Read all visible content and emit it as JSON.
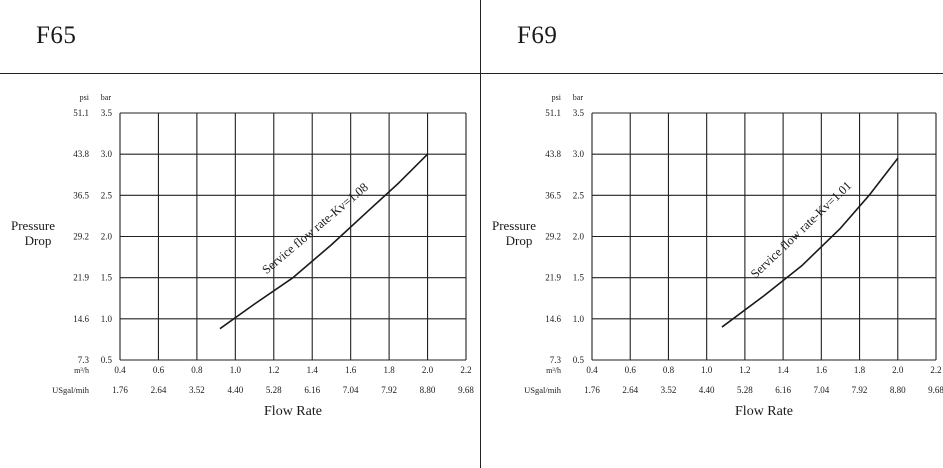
{
  "charts": [
    {
      "title": "F65",
      "chart_data": {
        "type": "line",
        "title": "F65",
        "xlabel": "Flow Rate",
        "ylabel": "Pressure Drop",
        "unit_labels": {
          "psi": "psi",
          "bar": "bar",
          "m3h": "m³/h",
          "usgal": "USgal/mih"
        },
        "xlim": [
          0.4,
          2.2
        ],
        "ylim": [
          0.5,
          3.5
        ],
        "x_ticks_m3h": [
          "0.4",
          "0.6",
          "0.8",
          "1.0",
          "1.2",
          "1.4",
          "1.6",
          "1.8",
          "2.0",
          "2.2"
        ],
        "x_ticks_usgal": [
          "1.76",
          "2.64",
          "3.52",
          "4.40",
          "5.28",
          "6.16",
          "7.04",
          "7.92",
          "8.80",
          "9.68"
        ],
        "y_ticks_bar": [
          "0.5",
          "1.0",
          "1.5",
          "2.0",
          "2.5",
          "3.0",
          "3.5"
        ],
        "y_ticks_psi": [
          "7.3",
          "14.6",
          "21.9",
          "29.2",
          "36.5",
          "43.8",
          "51.1"
        ],
        "grid": true,
        "series": [
          {
            "name": "Service flow rate-Kv=1.08",
            "x": [
              0.92,
              1.1,
              1.3,
              1.5,
              1.7,
              1.85,
              2.0
            ],
            "y": [
              0.88,
              1.18,
              1.5,
              1.9,
              2.33,
              2.65,
              3.0
            ]
          }
        ]
      }
    },
    {
      "title": "F69",
      "chart_data": {
        "type": "line",
        "title": "F69",
        "xlabel": "Flow Rate",
        "ylabel": "Pressure Drop",
        "unit_labels": {
          "psi": "psi",
          "bar": "bar",
          "m3h": "m³/h",
          "usgal": "USgal/mih"
        },
        "xlim": [
          0.4,
          2.2
        ],
        "ylim": [
          0.5,
          3.5
        ],
        "x_ticks_m3h": [
          "0.4",
          "0.6",
          "0.8",
          "1.0",
          "1.2",
          "1.4",
          "1.6",
          "1.8",
          "2.0",
          "2.2"
        ],
        "x_ticks_usgal": [
          "1.76",
          "2.64",
          "3.52",
          "4.40",
          "5.28",
          "6.16",
          "7.04",
          "7.92",
          "8.80",
          "9.68"
        ],
        "y_ticks_bar": [
          "0.5",
          "1.0",
          "1.5",
          "2.0",
          "2.5",
          "3.0",
          "3.5"
        ],
        "y_ticks_psi": [
          "7.3",
          "14.6",
          "21.9",
          "29.2",
          "36.5",
          "43.8",
          "51.1"
        ],
        "grid": true,
        "series": [
          {
            "name": "Service flow rate-Kv=1.01",
            "x": [
              1.08,
              1.3,
              1.5,
              1.7,
              1.85,
              2.0
            ],
            "y": [
              0.9,
              1.28,
              1.65,
              2.1,
              2.5,
              2.95
            ]
          }
        ]
      }
    }
  ]
}
